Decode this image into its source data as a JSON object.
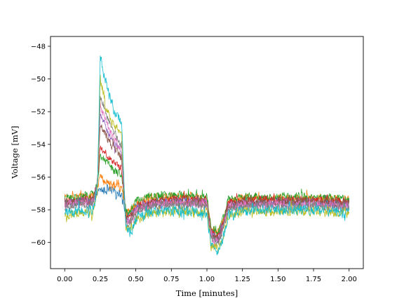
{
  "chart_data": {
    "type": "line",
    "title": "",
    "xlabel": "Time [minutes]",
    "ylabel": "Voltage [mV]",
    "xlim": [
      -0.1,
      2.1
    ],
    "ylim": [
      -61.6,
      -47.4
    ],
    "xticks": [
      0.0,
      0.25,
      0.5,
      0.75,
      1.0,
      1.25,
      1.5,
      1.75,
      2.0
    ],
    "xtick_labels": [
      "0.00",
      "0.25",
      "0.50",
      "0.75",
      "1.00",
      "1.25",
      "1.50",
      "1.75",
      "2.00"
    ],
    "yticks": [
      -60,
      -58,
      -56,
      -54,
      -52,
      -50,
      -48
    ],
    "ytick_labels": [
      "−60",
      "−58",
      "−56",
      "−54",
      "−52",
      "−50",
      "−48"
    ],
    "grid": false,
    "legend": "none",
    "x": [
      0.0,
      0.2,
      0.23,
      0.25,
      0.3,
      0.35,
      0.4,
      0.43,
      0.46,
      0.5,
      0.6,
      0.8,
      1.0,
      1.03,
      1.08,
      1.12,
      1.15,
      1.25,
      1.5,
      1.75,
      2.0
    ],
    "series": [
      {
        "color": "#1f77b4",
        "noise": 0.35,
        "values": [
          -57.6,
          -57.4,
          -57.0,
          -56.8,
          -56.8,
          -56.9,
          -57.0,
          -58.3,
          -58.2,
          -57.8,
          -57.5,
          -57.4,
          -57.5,
          -59.4,
          -59.6,
          -58.6,
          -57.7,
          -57.5,
          -57.5,
          -57.5,
          -57.6
        ]
      },
      {
        "color": "#ff7f0e",
        "noise": 0.35,
        "values": [
          -57.3,
          -57.1,
          -56.6,
          -56.0,
          -56.3,
          -56.6,
          -56.7,
          -58.1,
          -58.1,
          -57.6,
          -57.3,
          -57.2,
          -57.3,
          -59.2,
          -59.4,
          -58.4,
          -57.5,
          -57.3,
          -57.3,
          -57.3,
          -57.4
        ]
      },
      {
        "color": "#2ca02c",
        "noise": 0.35,
        "values": [
          -57.3,
          -57.1,
          -56.3,
          -54.6,
          -55.2,
          -55.6,
          -55.9,
          -58.0,
          -58.1,
          -57.5,
          -57.2,
          -57.1,
          -57.2,
          -59.2,
          -59.4,
          -58.4,
          -57.4,
          -57.2,
          -57.2,
          -57.2,
          -57.3
        ]
      },
      {
        "color": "#d62728",
        "noise": 0.35,
        "values": [
          -57.5,
          -57.3,
          -56.4,
          -54.0,
          -54.7,
          -55.2,
          -55.5,
          -58.3,
          -58.5,
          -57.8,
          -57.5,
          -57.3,
          -57.4,
          -59.4,
          -59.6,
          -58.6,
          -57.6,
          -57.4,
          -57.4,
          -57.4,
          -57.5
        ]
      },
      {
        "color": "#9467bd",
        "noise": 0.35,
        "values": [
          -57.6,
          -57.4,
          -56.4,
          -52.2,
          -53.2,
          -54.0,
          -54.5,
          -58.6,
          -58.7,
          -58.0,
          -57.6,
          -57.5,
          -57.6,
          -59.6,
          -59.8,
          -58.8,
          -57.8,
          -57.6,
          -57.6,
          -57.6,
          -57.7
        ]
      },
      {
        "color": "#8c564b",
        "noise": 0.35,
        "values": [
          -57.6,
          -57.4,
          -56.3,
          -52.8,
          -53.6,
          -54.3,
          -54.8,
          -58.5,
          -58.7,
          -58.0,
          -57.6,
          -57.5,
          -57.6,
          -59.6,
          -59.8,
          -58.8,
          -57.8,
          -57.6,
          -57.5,
          -57.5,
          -57.6
        ]
      },
      {
        "color": "#e377c2",
        "noise": 0.35,
        "values": [
          -57.7,
          -57.5,
          -56.4,
          -51.6,
          -52.8,
          -53.7,
          -54.3,
          -58.6,
          -58.8,
          -58.1,
          -57.7,
          -57.6,
          -57.7,
          -59.7,
          -59.9,
          -58.9,
          -57.9,
          -57.7,
          -57.7,
          -57.7,
          -57.8
        ]
      },
      {
        "color": "#7f7f7f",
        "noise": 0.35,
        "values": [
          -57.8,
          -57.6,
          -56.5,
          -51.0,
          -52.4,
          -53.4,
          -54.0,
          -58.7,
          -58.9,
          -58.2,
          -57.8,
          -57.7,
          -57.8,
          -59.8,
          -60.0,
          -59.0,
          -58.0,
          -57.8,
          -57.8,
          -57.8,
          -57.9
        ]
      },
      {
        "color": "#bcbd22",
        "noise": 0.4,
        "values": [
          -58.3,
          -58.1,
          -56.8,
          -50.0,
          -51.9,
          -52.8,
          -53.4,
          -59.1,
          -59.3,
          -58.6,
          -58.2,
          -58.1,
          -58.2,
          -60.2,
          -60.4,
          -59.4,
          -58.3,
          -58.1,
          -58.1,
          -58.1,
          -58.2
        ]
      },
      {
        "color": "#17becf",
        "noise": 0.42,
        "values": [
          -58.2,
          -58.0,
          -56.6,
          -48.6,
          -50.6,
          -52.0,
          -52.6,
          -59.2,
          -59.5,
          -58.5,
          -58.2,
          -58.0,
          -58.2,
          -60.3,
          -60.6,
          -59.5,
          -58.3,
          -58.1,
          -58.0,
          -58.0,
          -58.2
        ]
      }
    ]
  }
}
